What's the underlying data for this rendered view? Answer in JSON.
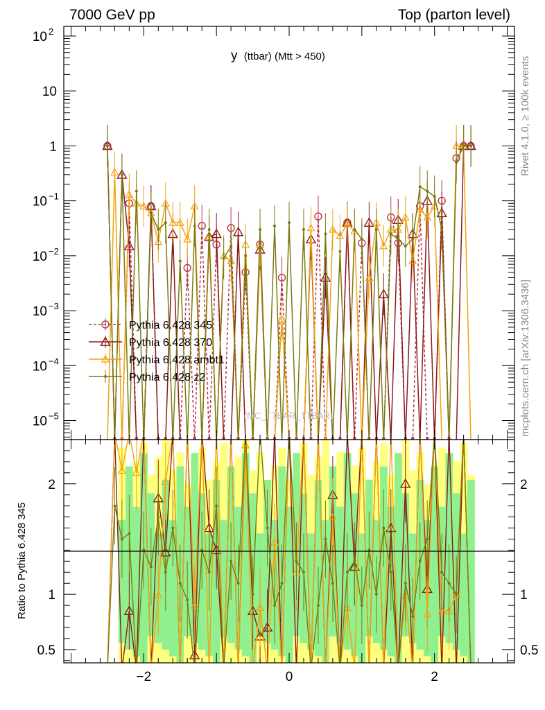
{
  "header": {
    "left": "7000 GeV pp",
    "right": "Top (parton level)"
  },
  "side": {
    "top": "Rivet 4.1.0, ≥ 100k events",
    "bottom": "mcplots.cern.ch [arXiv:1306.3436]"
  },
  "colors": {
    "p345": "#b5364c",
    "p370": "#8b1a1a",
    "ambt1": "#f2a20d",
    "z2": "#7a7a10",
    "band_inner": "#90f090",
    "band_outer": "#ffff80"
  },
  "chart_data": {
    "type": "line",
    "title": "y (ttbar) (Mtt > 450)",
    "title_main": "y",
    "title_sub": "(ttbar) (Mtt > 450)",
    "watermark": "(MC_TTBAR_TTBAR)",
    "xlabel": "",
    "ylabel": "",
    "ratio_ylabel": "Ratio to Pythia 6.428 345",
    "xlim": [
      -3.1,
      3.1
    ],
    "ylim_log": [
      4.5e-06,
      150
    ],
    "ratio_ylim": [
      0.38,
      2.4
    ],
    "x_ticks": [
      -2,
      0,
      2
    ],
    "x_tick_labels": [
      "−2",
      "0",
      "2"
    ],
    "y_ticks": [
      {
        "base": "10",
        "exp": "2",
        "value": 100
      },
      {
        "base": "10",
        "exp": "",
        "value": 10
      },
      {
        "base": "1",
        "exp": "",
        "value": 1
      },
      {
        "base": "10",
        "exp": "−1",
        "value": 0.1
      },
      {
        "base": "10",
        "exp": "−2",
        "value": 0.01
      },
      {
        "base": "10",
        "exp": "−3",
        "value": 0.001
      },
      {
        "base": "10",
        "exp": "−4",
        "value": 0.0001
      },
      {
        "base": "10",
        "exp": "−5",
        "value": 1e-05
      }
    ],
    "ratio_ticks": [
      {
        "label": "2",
        "value": 2
      },
      {
        "label": "1",
        "value": 1
      },
      {
        "label": "0.5",
        "value": 0.5
      }
    ],
    "x": [
      -2.5,
      -2.4,
      -2.3,
      -2.2,
      -2.1,
      -2.0,
      -1.9,
      -1.8,
      -1.7,
      -1.6,
      -1.5,
      -1.4,
      -1.3,
      -1.2,
      -1.1,
      -1.0,
      -0.9,
      -0.8,
      -0.7,
      -0.6,
      -0.5,
      -0.4,
      -0.3,
      -0.2,
      -0.1,
      0.0,
      0.1,
      0.2,
      0.3,
      0.4,
      0.5,
      0.6,
      0.7,
      0.8,
      0.9,
      1.0,
      1.1,
      1.2,
      1.3,
      1.4,
      1.5,
      1.6,
      1.7,
      1.8,
      1.9,
      2.0,
      2.1,
      2.2,
      2.3,
      2.4,
      2.5
    ],
    "band_x": [
      -2.35,
      2.55
    ],
    "series": [
      {
        "name": "Pythia 6.428 345",
        "key": "p345",
        "marker": "circle",
        "dashed": true,
        "values": [
          1.0,
          0,
          0,
          0.09,
          0,
          0,
          0.08,
          0,
          0,
          0,
          0,
          0.006,
          0,
          0.035,
          0,
          0.016,
          0,
          0.032,
          0,
          0.005,
          0,
          0.016,
          0,
          0,
          0.004,
          0,
          0,
          0,
          0,
          0.052,
          0,
          0,
          0,
          0.04,
          0,
          0.017,
          0,
          0,
          0,
          0.05,
          0.017,
          0,
          0,
          0.08,
          0,
          0,
          0.1,
          0,
          0.6,
          1.0,
          1.0
        ],
        "ratio": []
      },
      {
        "name": "Pythia 6.428 370",
        "key": "p370",
        "marker": "triangle",
        "dashed": false,
        "values": [
          1.0,
          0,
          0.3,
          0.015,
          0,
          0,
          0.08,
          0,
          0,
          0.025,
          0,
          0,
          0,
          0,
          0.022,
          0.025,
          0,
          0,
          0.027,
          0,
          0,
          0.013,
          0,
          0,
          0,
          0,
          0,
          0,
          0.02,
          0,
          0.004,
          0,
          0,
          0.04,
          0,
          0,
          0.04,
          0,
          0.002,
          0,
          0.045,
          0,
          0.025,
          0,
          0.1,
          0,
          0.06,
          0,
          0,
          1.0,
          1.0
        ],
        "ratio": [
          null,
          null,
          null,
          0.85,
          null,
          null,
          null,
          1.87,
          1.38,
          null,
          null,
          null,
          0.45,
          null,
          1.6,
          1.4,
          null,
          null,
          null,
          null,
          0.85,
          0.62,
          0.7,
          null,
          null,
          null,
          null,
          null,
          null,
          null,
          null,
          1.9,
          null,
          null,
          1.25,
          null,
          null,
          null,
          null,
          1.6,
          null,
          2.0,
          null,
          null,
          1.05,
          null,
          null,
          null,
          null,
          null,
          null
        ]
      },
      {
        "name": "Pythia 6.428 ambt1",
        "key": "ambt1",
        "marker": "triangle-small",
        "dashed": false,
        "values": [
          0,
          0.33,
          0,
          0.13,
          0.09,
          0.08,
          0.06,
          0.018,
          0.09,
          0.04,
          0.04,
          0.02,
          0.08,
          0,
          0.022,
          0,
          0.01,
          0.008,
          0,
          0.016,
          0,
          0.016,
          0,
          0,
          0.0007,
          0,
          0,
          0,
          0.032,
          0,
          0,
          0.03,
          0.023,
          0.038,
          0.028,
          0,
          0.004,
          0.04,
          0.015,
          0.03,
          0.03,
          0.05,
          0.008,
          0.07,
          0.05,
          0.08,
          0,
          0,
          1.0,
          1.0,
          0
        ],
        "ratio": [
          null,
          null,
          2.12,
          null,
          2.1,
          null,
          null,
          0.99,
          2.02,
          null,
          null,
          null,
          0.9,
          null,
          null,
          null,
          null,
          null,
          null,
          2.35,
          null,
          0.88,
          null,
          1.47,
          null,
          null,
          1.2,
          null,
          null,
          null,
          null,
          1.7,
          null,
          0.88,
          null,
          null,
          null,
          null,
          null,
          null,
          null,
          0.99,
          null,
          null,
          0.82,
          null,
          0.85,
          0.85,
          1.0,
          null,
          null
        ]
      },
      {
        "name": "Pythia 6.428 z2",
        "key": "z2",
        "marker": "dot",
        "dashed": false,
        "values": [
          1.0,
          0,
          0.3,
          0,
          0.15,
          0,
          0.06,
          0.03,
          0.04,
          0,
          0.008,
          0,
          0.035,
          0,
          0.03,
          0,
          0.009,
          0.015,
          0,
          0.01,
          0,
          0.03,
          0,
          0.035,
          0,
          0.04,
          0,
          0.03,
          0,
          0,
          0.025,
          0,
          0.012,
          0,
          0.03,
          0.02,
          0,
          0.03,
          0,
          0.025,
          0.02,
          0.015,
          0.02,
          0.18,
          0.15,
          0.12,
          0.03,
          0,
          0.5,
          1.0,
          1.0
        ],
        "ratio": [
          null,
          1.8,
          1.5,
          1.55,
          null,
          1.4,
          1.25,
          1.7,
          1.2,
          1.6,
          1.1,
          0.95,
          null,
          1.4,
          1.2,
          1.8,
          null,
          1.3,
          1.1,
          null,
          1.0,
          null,
          1.6,
          0.9,
          1.1,
          null,
          1.3,
          1.2,
          null,
          0.9,
          1.5,
          1.1,
          null,
          1.2,
          1.3,
          0.9,
          1.4,
          1.0,
          1.6,
          1.2,
          null,
          1.1,
          0.8,
          1.3,
          1.5,
          null,
          1.2,
          1.1,
          1.0,
          null,
          null
        ]
      }
    ]
  }
}
